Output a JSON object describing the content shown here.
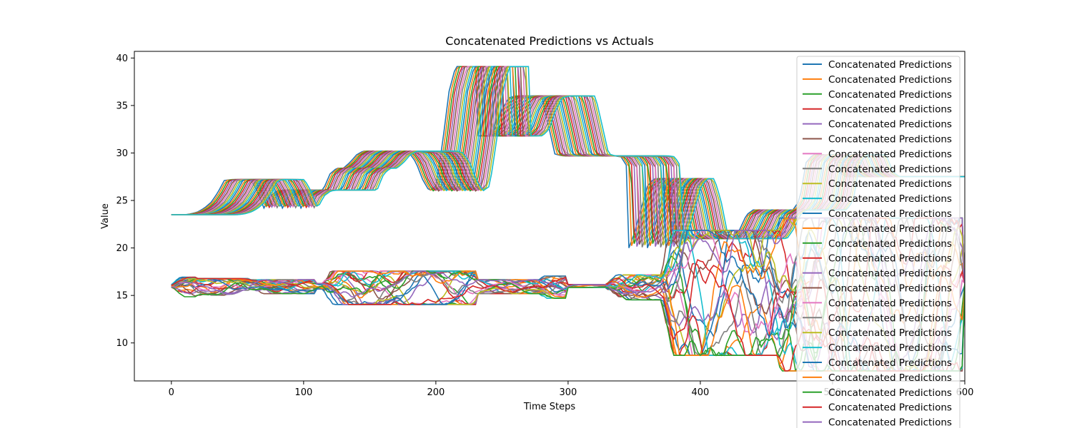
{
  "chart_data": {
    "type": "line",
    "title": "Concatenated Predictions vs Actuals",
    "xlabel": "Time Steps",
    "ylabel": "Value",
    "xlim": [
      -28,
      600
    ],
    "ylim": [
      6,
      40.7
    ],
    "xticks": [
      0,
      100,
      200,
      300,
      400,
      500,
      600
    ],
    "xtick_labels": [
      "0",
      "100",
      "200",
      "300",
      "400",
      "500",
      "600"
    ],
    "yticks": [
      10,
      15,
      20,
      25,
      30,
      35,
      40
    ],
    "ytick_labels": [
      "10",
      "15",
      "20",
      "25",
      "30",
      "35",
      "40"
    ],
    "grid": false,
    "legend_position": "upper-right",
    "legend_entries": [
      "Concatenated Predictions",
      "Concatenated Predictions",
      "Concatenated Predictions",
      "Concatenated Predictions",
      "Concatenated Predictions",
      "Concatenated Predictions",
      "Concatenated Predictions",
      "Concatenated Predictions",
      "Concatenated Predictions",
      "Concatenated Predictions",
      "Concatenated Predictions",
      "Concatenated Predictions",
      "Concatenated Predictions",
      "Concatenated Predictions",
      "Concatenated Predictions",
      "Concatenated Predictions",
      "Concatenated Predictions",
      "Concatenated Predictions",
      "Concatenated Predictions",
      "Concatenated Predictions",
      "Concatenated Predictions",
      "Concatenated Predictions",
      "Concatenated Predictions",
      "Concatenated Predictions",
      "Concatenated Predictions"
    ],
    "series_colors": [
      "#1f77b4",
      "#ff7f0e",
      "#2ca02c",
      "#d62728",
      "#9467bd",
      "#8c564b",
      "#e377c2",
      "#7f7f7f",
      "#bcbd22",
      "#17becf"
    ],
    "actuals_base": {
      "x": [
        0,
        5,
        10,
        15,
        20,
        25,
        30,
        35,
        40,
        45,
        50,
        55,
        60,
        65,
        70,
        75,
        80,
        85,
        90,
        95,
        100,
        105,
        110,
        115,
        116,
        120,
        125,
        130,
        135,
        140,
        145,
        150,
        155,
        160,
        165,
        170,
        175,
        180,
        185,
        190,
        195,
        200,
        205,
        210,
        215,
        220,
        225,
        230,
        231,
        235,
        240,
        245,
        250,
        255,
        260,
        265,
        270,
        275,
        280,
        285,
        290,
        295,
        300,
        305,
        310,
        315,
        320,
        325,
        330,
        335,
        340,
        345,
        346,
        350,
        355,
        360,
        365,
        370,
        375,
        380,
        385,
        390,
        395,
        400,
        405,
        410,
        415,
        420,
        425,
        430,
        435,
        440,
        445,
        450,
        455,
        460,
        465,
        470,
        475,
        480,
        485,
        490,
        495,
        500,
        505,
        510,
        515,
        520,
        525,
        530,
        535,
        540,
        545,
        550,
        555,
        560,
        565,
        570,
        575,
        580,
        585,
        590,
        595,
        600
      ],
      "y": [
        23.5,
        23.5,
        23.5,
        23.6,
        23.8,
        24.2,
        24.8,
        25.8,
        27.1,
        27.2,
        27.2,
        27.2,
        27.2,
        26.0,
        24.2,
        25.5,
        26.0,
        26.1,
        26.1,
        26.1,
        26.1,
        26.1,
        26.1,
        26.1,
        26.5,
        27.8,
        28.4,
        28.4,
        29.0,
        29.8,
        30.2,
        30.2,
        30.2,
        30.2,
        30.2,
        30.2,
        30.2,
        30.0,
        29.0,
        27.2,
        26.0,
        26.5,
        31.0,
        36.5,
        39.1,
        39.1,
        39.1,
        39.1,
        31.8,
        31.8,
        31.8,
        32.5,
        34.5,
        35.8,
        36.0,
        36.0,
        36.0,
        36.0,
        36.0,
        33.0,
        29.9,
        29.7,
        29.7,
        29.7,
        29.7,
        29.7,
        29.7,
        29.7,
        29.7,
        29.7,
        29.6,
        28.5,
        20.0,
        21.5,
        24.0,
        26.5,
        27.3,
        27.3,
        25.0,
        21.5,
        21.0,
        21.0,
        21.0,
        21.0,
        21.0,
        21.0,
        21.0,
        21.0,
        21.0,
        22.0,
        23.5,
        24.0,
        24.0,
        24.0,
        24.0,
        24.0,
        24.0,
        24.0,
        25.0,
        29.0,
        29.8,
        29.8,
        29.8,
        29.8,
        28.0,
        27.5,
        27.5,
        27.5,
        27.5,
        27.5,
        27.5,
        27.5,
        27.5,
        27.5,
        27.5,
        27.5,
        27.5,
        27.5,
        27.5,
        27.5,
        27.5,
        27.5,
        27.5,
        27.5
      ]
    },
    "actuals_shifts": 30,
    "actuals_shift_step": 1.4,
    "predictions_baseline": 16.0,
    "predictions_series_count": 25,
    "predictions_regions": [
      {
        "x_start": 0,
        "x_end": 20,
        "spread": 0.7
      },
      {
        "x_start": 20,
        "x_end": 60,
        "spread": 0.6
      },
      {
        "x_start": 60,
        "x_end": 110,
        "spread": 0.5
      },
      {
        "x_start": 115,
        "x_end": 232,
        "spread": 1.2
      },
      {
        "x_start": 232,
        "x_end": 280,
        "spread": 0.5
      },
      {
        "x_start": 280,
        "x_end": 300,
        "spread": 0.8
      },
      {
        "x_start": 300,
        "x_end": 330,
        "spread": 0.1
      },
      {
        "x_start": 330,
        "x_end": 372,
        "spread": 0.9
      },
      {
        "x_start": 372,
        "x_end": 460,
        "spread": 4.5
      },
      {
        "x_start": 460,
        "x_end": 600,
        "spread": 5.5
      }
    ]
  }
}
